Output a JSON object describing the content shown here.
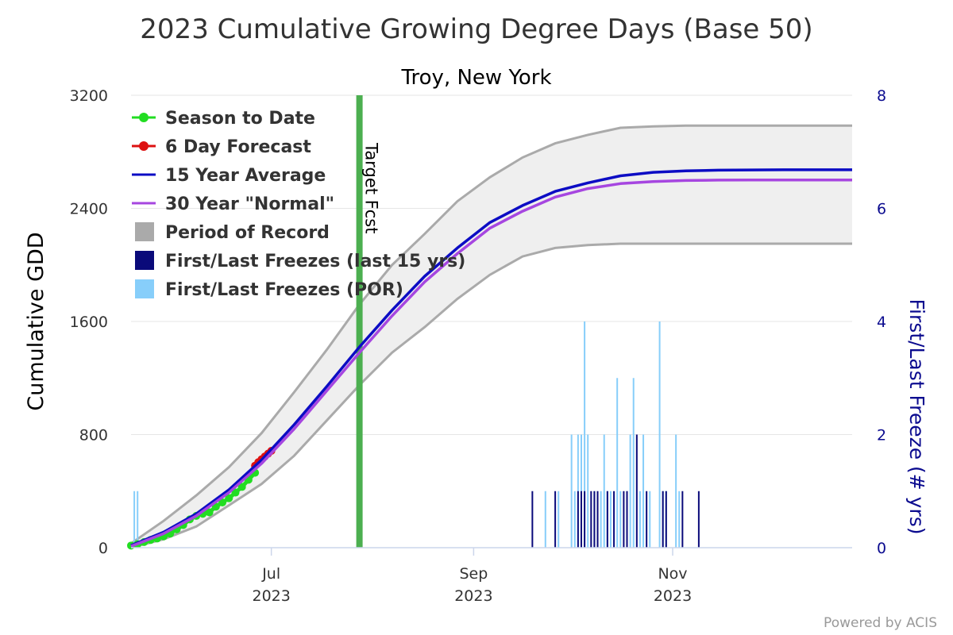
{
  "chart_data": {
    "type": "line",
    "title": "2023 Cumulative Growing Degree Days (Base 50)",
    "subtitle": "Troy, New York",
    "credit": "Powered by ACIS",
    "yaxis_left": {
      "title": "Cumulative GDD",
      "range": [
        0,
        3200
      ],
      "ticks": [
        "0",
        "800",
        "1600",
        "2400",
        "3200"
      ],
      "grid": true
    },
    "yaxis_right": {
      "title": "First/Last Freeze (# yrs)",
      "range": [
        0,
        8
      ],
      "ticks": [
        "0",
        "2",
        "4",
        "6",
        "8"
      ]
    },
    "xaxis": {
      "range_day": [
        0,
        221
      ],
      "ticks": [
        {
          "day": 43,
          "label": "Jul",
          "year": "2023"
        },
        {
          "day": 105,
          "label": "Sep",
          "year": ""
        },
        {
          "day": 166,
          "label": "Nov",
          "year": ""
        }
      ],
      "year_labels": [
        {
          "day": 43,
          "label": "2023"
        },
        {
          "day": 105,
          "label": "2023"
        },
        {
          "day": 166,
          "label": "2023"
        }
      ],
      "note": "day index 0 = 2023-05-20"
    },
    "target_forecast": {
      "day": 70,
      "label": "Target Fcst",
      "color": "#4caf50"
    },
    "legend": [
      {
        "label": "Season to Date",
        "color": "#22dd22",
        "symbol": "line-dot"
      },
      {
        "label": "6 Day Forecast",
        "color": "#dd1111",
        "symbol": "line-dot"
      },
      {
        "label": "15 Year Average",
        "color": "#0c0cc4",
        "symbol": "line"
      },
      {
        "label": "30 Year \"Normal\"",
        "color": "#a646e0",
        "symbol": "line"
      },
      {
        "label": "Period of Record",
        "color": "#aaaaaa",
        "symbol": "square"
      },
      {
        "label": "First/Last Freezes (last 15 yrs)",
        "color": "#0a0a7a",
        "symbol": "square"
      },
      {
        "label": "First/Last Freezes (POR)",
        "color": "#87cefa",
        "symbol": "square"
      }
    ],
    "series": [
      {
        "name": "Season to Date",
        "color": "#22dd22",
        "x": [
          0,
          2,
          4,
          6,
          8,
          10,
          12,
          14,
          16,
          18,
          20,
          22,
          24,
          26,
          28,
          30,
          32,
          34,
          36,
          38
        ],
        "values": [
          15,
          25,
          40,
          55,
          65,
          80,
          100,
          130,
          160,
          200,
          225,
          240,
          250,
          290,
          320,
          350,
          390,
          430,
          480,
          530
        ]
      },
      {
        "name": "6 Day Forecast",
        "color": "#dd1111",
        "x": [
          38,
          39,
          40,
          41,
          42,
          43
        ],
        "values": [
          580,
          605,
          625,
          645,
          665,
          685
        ]
      },
      {
        "name": "15 Year Average",
        "color": "#0c0cc4",
        "x": [
          0,
          10,
          20,
          30,
          40,
          50,
          60,
          70,
          80,
          90,
          100,
          110,
          120,
          130,
          140,
          150,
          160,
          170,
          180,
          190,
          200,
          210,
          221
        ],
        "values": [
          15,
          110,
          240,
          410,
          620,
          870,
          1140,
          1420,
          1680,
          1920,
          2120,
          2300,
          2420,
          2520,
          2580,
          2630,
          2655,
          2665,
          2670,
          2672,
          2673,
          2673,
          2673
        ]
      },
      {
        "name": "30 Year \"Normal\"",
        "color": "#a646e0",
        "x": [
          0,
          10,
          20,
          30,
          40,
          50,
          60,
          70,
          80,
          90,
          100,
          110,
          120,
          130,
          140,
          150,
          160,
          170,
          180,
          190,
          200,
          210,
          221
        ],
        "values": [
          10,
          100,
          225,
          390,
          595,
          840,
          1110,
          1380,
          1640,
          1880,
          2080,
          2260,
          2380,
          2480,
          2540,
          2575,
          2590,
          2597,
          2600,
          2601,
          2601,
          2601,
          2601
        ]
      },
      {
        "name": "Period of Record",
        "color": "#aaaaaa",
        "type": "area-range",
        "x": [
          0,
          10,
          20,
          30,
          40,
          50,
          60,
          70,
          80,
          90,
          100,
          110,
          120,
          130,
          140,
          150,
          160,
          170,
          180,
          190,
          200,
          210,
          221
        ],
        "low": [
          0,
          60,
          150,
          300,
          450,
          650,
          900,
          1150,
          1380,
          1560,
          1760,
          1930,
          2060,
          2120,
          2140,
          2150,
          2150,
          2150,
          2150,
          2150,
          2150,
          2150,
          2150
        ],
        "high": [
          30,
          190,
          370,
          570,
          810,
          1100,
          1400,
          1720,
          2000,
          2220,
          2450,
          2620,
          2760,
          2860,
          2920,
          2970,
          2980,
          2985,
          2985,
          2985,
          2985,
          2985,
          2985
        ]
      }
    ],
    "freeze_bars": {
      "por": {
        "color": "#87cefa",
        "days": [
          1,
          2,
          127,
          131,
          135,
          136,
          137,
          138,
          139,
          140,
          142,
          144,
          145,
          146,
          147,
          149,
          150,
          152,
          153,
          154,
          156,
          157,
          159,
          162,
          163,
          164,
          168,
          167
        ],
        "counts": [
          1,
          1,
          1,
          1,
          2,
          1,
          2,
          2,
          4,
          2,
          1,
          1,
          2,
          1,
          1,
          3,
          1,
          1,
          2,
          3,
          1,
          2,
          1,
          4,
          1,
          1,
          1,
          2
        ]
      },
      "last15": {
        "color": "#0a0a7a",
        "days": [
          123,
          130,
          137,
          138,
          139,
          141,
          142,
          143,
          146,
          148,
          151,
          152,
          155,
          158,
          163,
          164,
          169,
          174
        ],
        "counts": [
          1,
          1,
          1,
          1,
          1,
          1,
          1,
          1,
          1,
          1,
          1,
          1,
          2,
          1,
          1,
          1,
          1,
          1
        ]
      }
    }
  }
}
